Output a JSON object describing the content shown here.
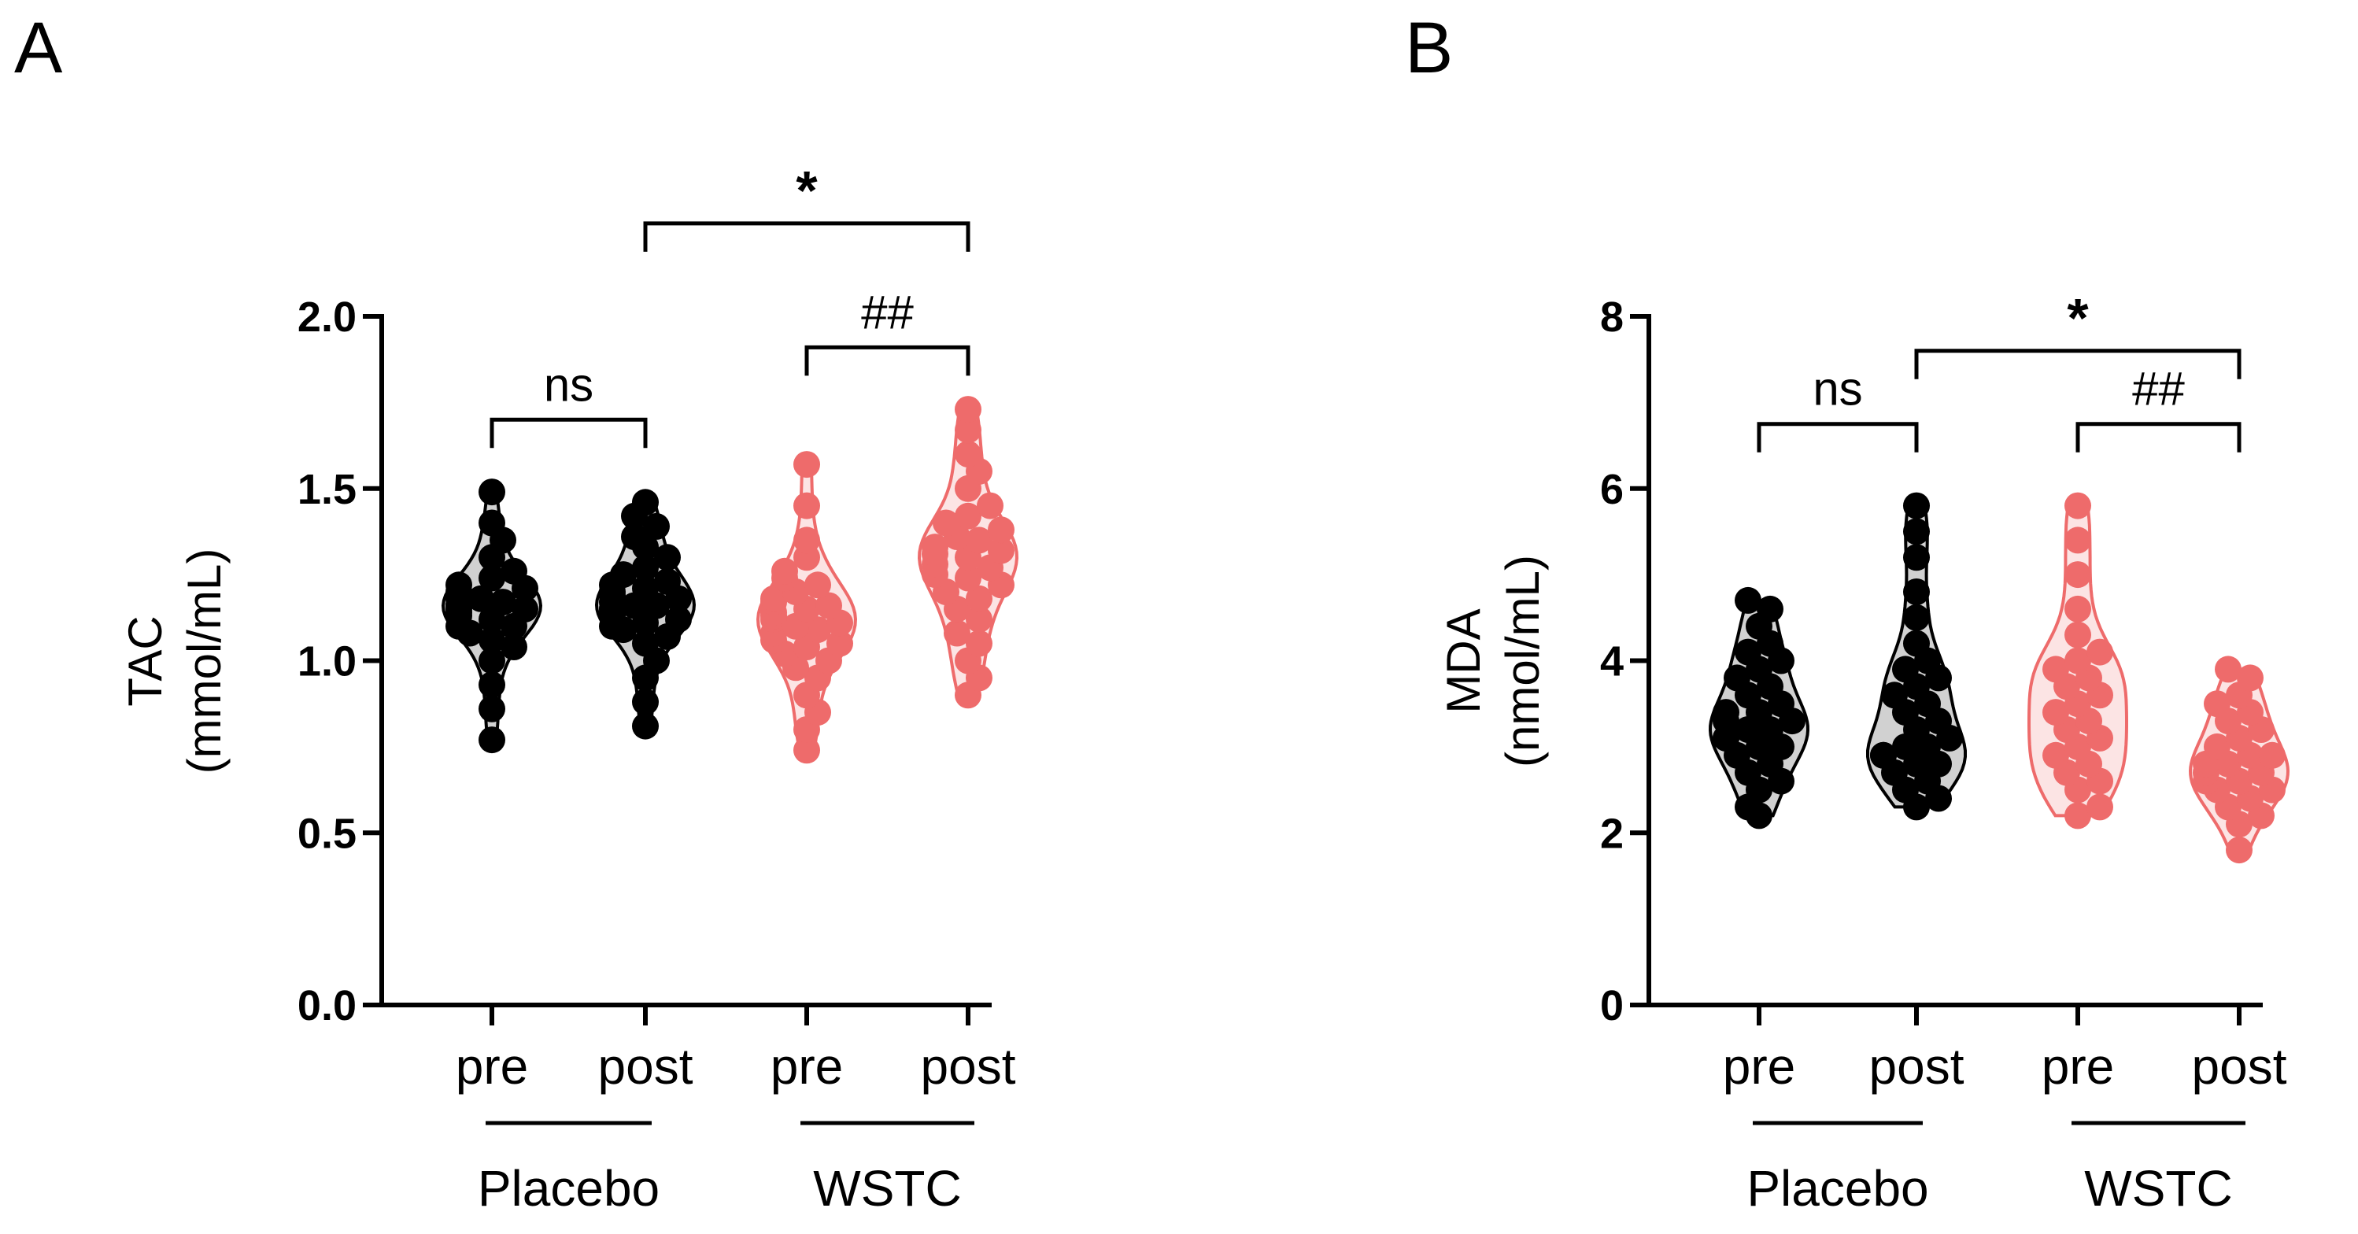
{
  "chart_data": [
    {
      "panel_label": "A",
      "type": "violin",
      "ylabel": "TAC",
      "ylabel_units": "(mmol/mL)",
      "ylim": [
        0,
        2.0
      ],
      "yticks": [
        "0.0",
        "0.5",
        "1.0",
        "1.5",
        "2.0"
      ],
      "categories": [
        "pre",
        "post",
        "pre",
        "post"
      ],
      "groups": [
        {
          "name": "Placebo",
          "categories": [
            0,
            1
          ]
        },
        {
          "name": "WSTC",
          "categories": [
            2,
            3
          ]
        }
      ],
      "series": [
        {
          "name": "Placebo pre",
          "color": "#000000",
          "values": [
            0.77,
            0.86,
            0.93,
            1.0,
            1.04,
            1.06,
            1.08,
            1.1,
            1.1,
            1.12,
            1.13,
            1.14,
            1.15,
            1.15,
            1.16,
            1.16,
            1.17,
            1.18,
            1.18,
            1.19,
            1.2,
            1.21,
            1.22,
            1.24,
            1.26,
            1.3,
            1.35,
            1.4,
            1.49
          ]
        },
        {
          "name": "Placebo post",
          "color": "#000000",
          "values": [
            0.81,
            0.88,
            0.95,
            1.0,
            1.05,
            1.07,
            1.09,
            1.1,
            1.11,
            1.12,
            1.13,
            1.14,
            1.15,
            1.15,
            1.16,
            1.16,
            1.17,
            1.18,
            1.19,
            1.2,
            1.21,
            1.22,
            1.23,
            1.25,
            1.27,
            1.3,
            1.33,
            1.36,
            1.39,
            1.42,
            1.46
          ]
        },
        {
          "name": "WSTC pre",
          "color": "#ee6b6b",
          "values": [
            0.74,
            0.8,
            0.85,
            0.9,
            0.95,
            0.98,
            1.0,
            1.02,
            1.04,
            1.05,
            1.06,
            1.08,
            1.09,
            1.1,
            1.11,
            1.12,
            1.13,
            1.14,
            1.15,
            1.16,
            1.17,
            1.18,
            1.2,
            1.22,
            1.24,
            1.26,
            1.3,
            1.35,
            1.45,
            1.57
          ]
        },
        {
          "name": "WSTC post",
          "color": "#ee6b6b",
          "values": [
            0.9,
            0.95,
            1.0,
            1.05,
            1.08,
            1.12,
            1.15,
            1.18,
            1.2,
            1.22,
            1.24,
            1.25,
            1.27,
            1.28,
            1.3,
            1.31,
            1.32,
            1.33,
            1.35,
            1.36,
            1.38,
            1.4,
            1.42,
            1.45,
            1.5,
            1.55,
            1.6,
            1.67,
            1.73
          ]
        }
      ],
      "comparisons": [
        {
          "label": "ns",
          "from": 0,
          "to": 1,
          "level": 1.7,
          "style": "sig"
        },
        {
          "label": "##",
          "from": 2,
          "to": 3,
          "level": 1.91,
          "style": "sig"
        },
        {
          "label": "*",
          "from": 1,
          "to": 3,
          "level": 2.27,
          "style": "star"
        }
      ]
    },
    {
      "panel_label": "B",
      "type": "violin",
      "ylabel": "MDA",
      "ylabel_units": "(nmol/mL)",
      "ylim": [
        0,
        8
      ],
      "yticks": [
        "0",
        "2",
        "4",
        "6",
        "8"
      ],
      "categories": [
        "pre",
        "post",
        "pre",
        "post"
      ],
      "groups": [
        {
          "name": "Placebo",
          "categories": [
            0,
            1
          ]
        },
        {
          "name": "WSTC",
          "categories": [
            2,
            3
          ]
        }
      ],
      "series": [
        {
          "name": "Placebo pre",
          "color": "#000000",
          "values": [
            2.2,
            2.3,
            2.5,
            2.6,
            2.7,
            2.8,
            2.9,
            3.0,
            3.0,
            3.1,
            3.1,
            3.2,
            3.2,
            3.3,
            3.3,
            3.4,
            3.4,
            3.5,
            3.6,
            3.7,
            3.8,
            3.9,
            4.0,
            4.1,
            4.2,
            4.4,
            4.6,
            4.7
          ]
        },
        {
          "name": "Placebo post",
          "color": "#000000",
          "values": [
            2.3,
            2.4,
            2.5,
            2.6,
            2.7,
            2.8,
            2.8,
            2.9,
            2.9,
            3.0,
            3.0,
            3.1,
            3.2,
            3.3,
            3.4,
            3.5,
            3.6,
            3.7,
            3.8,
            3.9,
            4.0,
            4.2,
            4.5,
            4.8,
            5.2,
            5.5,
            5.8
          ]
        },
        {
          "name": "WSTC pre",
          "color": "#ee6b6b",
          "values": [
            2.2,
            2.3,
            2.5,
            2.6,
            2.7,
            2.8,
            2.9,
            3.0,
            3.1,
            3.2,
            3.3,
            3.4,
            3.5,
            3.6,
            3.7,
            3.8,
            3.9,
            4.0,
            4.1,
            4.3,
            4.6,
            5.0,
            5.4,
            5.8
          ]
        },
        {
          "name": "WSTC post",
          "color": "#ee6b6b",
          "values": [
            1.8,
            2.1,
            2.2,
            2.3,
            2.4,
            2.5,
            2.5,
            2.6,
            2.6,
            2.7,
            2.7,
            2.8,
            2.8,
            2.9,
            2.9,
            3.0,
            3.1,
            3.2,
            3.3,
            3.4,
            3.5,
            3.6,
            3.8,
            3.9
          ]
        }
      ],
      "comparisons": [
        {
          "label": "ns",
          "from": 0,
          "to": 1,
          "level": 6.75,
          "style": "sig"
        },
        {
          "label": "##",
          "from": 2,
          "to": 3,
          "level": 6.75,
          "style": "sig"
        },
        {
          "label": "*",
          "from": 1,
          "to": 3,
          "level": 7.6,
          "style": "star"
        }
      ]
    }
  ]
}
